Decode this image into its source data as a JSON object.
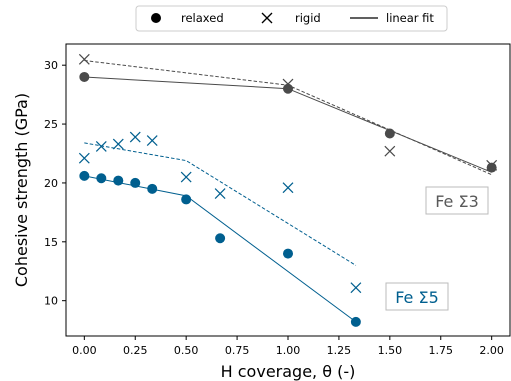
{
  "chart_data": {
    "type": "scatter",
    "xlabel": "H coverage, θ (-)",
    "ylabel": "Cohesive strength (GPa)",
    "xlim": [
      -0.09,
      2.09
    ],
    "ylim": [
      7,
      31.8
    ],
    "xticks": [
      0.0,
      0.25,
      0.5,
      0.75,
      1.0,
      1.25,
      1.5,
      1.75,
      2.0
    ],
    "xtick_labels": [
      "0.00",
      "0.25",
      "0.50",
      "0.75",
      "1.00",
      "1.25",
      "1.50",
      "1.75",
      "2.00"
    ],
    "yticks": [
      10,
      15,
      20,
      25,
      30
    ],
    "ytick_labels": [
      "10",
      "15",
      "20",
      "25",
      "30"
    ],
    "grid": false,
    "legend": {
      "placement": "top-center, outside plot",
      "entries": [
        {
          "label": "relaxed",
          "marker": "circle"
        },
        {
          "label": "rigid",
          "marker": "x"
        },
        {
          "label": "linear fit",
          "marker": "line"
        }
      ]
    },
    "annotations": [
      {
        "text": "Fe Σ3",
        "x": 1.8,
        "y": 18.1,
        "color": "#595959"
      },
      {
        "text": "Fe Σ5",
        "x": 1.55,
        "y": 10.2,
        "color": "#005f8f"
      }
    ],
    "series": [
      {
        "group": "Fe Σ3",
        "kind": "relaxed",
        "color": "#4a4a4a",
        "x": [
          0.0,
          1.0,
          1.5,
          2.0
        ],
        "y": [
          29.0,
          28.0,
          24.2,
          21.3
        ]
      },
      {
        "group": "Fe Σ3",
        "kind": "rigid",
        "color": "#4a4a4a",
        "x": [
          0.0,
          1.0,
          1.5,
          2.0
        ],
        "y": [
          30.5,
          28.4,
          22.7,
          21.5
        ]
      },
      {
        "group": "Fe Σ5",
        "kind": "relaxed",
        "color": "#005f8f",
        "x": [
          0.0,
          0.0833,
          0.1667,
          0.25,
          0.3333,
          0.5,
          0.6667,
          1.0,
          1.3333
        ],
        "y": [
          20.6,
          20.4,
          20.2,
          20.0,
          19.5,
          18.6,
          15.3,
          14.0,
          8.2
        ]
      },
      {
        "group": "Fe Σ5",
        "kind": "rigid",
        "color": "#005f8f",
        "x": [
          0.0,
          0.0833,
          0.1667,
          0.25,
          0.3333,
          0.5,
          0.6667,
          1.0,
          1.3333
        ],
        "y": [
          22.1,
          23.1,
          23.3,
          23.9,
          23.6,
          20.5,
          19.1,
          19.6,
          11.1
        ]
      }
    ],
    "fits": [
      {
        "group": "Fe Σ3",
        "kind": "relaxed",
        "style": "solid",
        "color": "#4a4a4a",
        "x": [
          0.0,
          1.0,
          2.0
        ],
        "y": [
          29.0,
          28.0,
          20.9
        ]
      },
      {
        "group": "Fe Σ3",
        "kind": "rigid",
        "style": "dashed",
        "color": "#4a4a4a",
        "x": [
          0.0,
          1.0,
          2.0
        ],
        "y": [
          30.4,
          28.3,
          20.7
        ]
      },
      {
        "group": "Fe Σ5",
        "kind": "relaxed",
        "style": "solid",
        "color": "#005f8f",
        "x": [
          0.0,
          0.5,
          1.3333
        ],
        "y": [
          20.6,
          18.9,
          8.2
        ]
      },
      {
        "group": "Fe Σ5",
        "kind": "rigid",
        "style": "dashed",
        "color": "#005f8f",
        "x": [
          0.0,
          0.5,
          1.3333
        ],
        "y": [
          23.4,
          21.9,
          13.0
        ]
      }
    ]
  }
}
